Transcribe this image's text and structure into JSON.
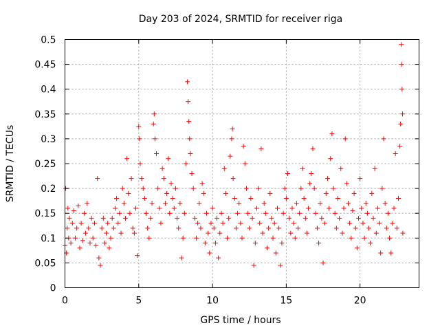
{
  "chart_data": {
    "type": "scatter",
    "title": "Day 203 of 2024, SRMTID for receiver riga",
    "xlabel": "GPS time / hours",
    "ylabel": "SRMTID / TECUs",
    "xlim": [
      0,
      24
    ],
    "ylim": [
      0,
      0.5
    ],
    "xticks": [
      0,
      5,
      10,
      15,
      20
    ],
    "yticks": [
      0,
      0.05,
      0.1,
      0.15,
      0.2,
      0.25,
      0.3,
      0.35,
      0.4,
      0.45,
      0.5
    ],
    "grid": true,
    "marker": "+",
    "color": "#ff0000",
    "series": [
      {
        "values": [
          [
            0.0,
            0.085
          ],
          [
            0.05,
            0.2
          ],
          [
            0.1,
            0.07
          ],
          [
            0.15,
            0.12
          ],
          [
            0.2,
            0.16
          ],
          [
            0.25,
            0.1
          ],
          [
            0.3,
            0.14
          ],
          [
            0.4,
            0.09
          ],
          [
            0.5,
            0.13
          ],
          [
            0.6,
            0.155
          ],
          [
            0.7,
            0.1
          ],
          [
            0.8,
            0.12
          ],
          [
            0.9,
            0.165
          ],
          [
            1.0,
            0.08
          ],
          [
            1.1,
            0.13
          ],
          [
            1.2,
            0.095
          ],
          [
            1.3,
            0.15
          ],
          [
            1.4,
            0.11
          ],
          [
            1.5,
            0.17
          ],
          [
            1.6,
            0.12
          ],
          [
            1.7,
            0.09
          ],
          [
            1.8,
            0.14
          ],
          [
            1.9,
            0.1
          ],
          [
            2.0,
            0.13
          ],
          [
            2.1,
            0.085
          ],
          [
            2.2,
            0.22
          ],
          [
            2.3,
            0.06
          ],
          [
            2.4,
            0.045
          ],
          [
            2.5,
            0.12
          ],
          [
            2.6,
            0.14
          ],
          [
            2.7,
            0.09
          ],
          [
            2.8,
            0.11
          ],
          [
            2.9,
            0.13
          ],
          [
            3.0,
            0.08
          ],
          [
            3.1,
            0.1
          ],
          [
            3.2,
            0.14
          ],
          [
            3.3,
            0.12
          ],
          [
            3.4,
            0.16
          ],
          [
            3.5,
            0.18
          ],
          [
            3.6,
            0.13
          ],
          [
            3.7,
            0.15
          ],
          [
            3.8,
            0.11
          ],
          [
            3.9,
            0.2
          ],
          [
            4.0,
            0.17
          ],
          [
            4.1,
            0.14
          ],
          [
            4.2,
            0.26
          ],
          [
            4.3,
            0.19
          ],
          [
            4.4,
            0.15
          ],
          [
            4.5,
            0.22
          ],
          [
            4.6,
            0.12
          ],
          [
            4.7,
            0.11
          ],
          [
            4.8,
            0.16
          ],
          [
            4.9,
            0.065
          ],
          [
            5.0,
            0.325
          ],
          [
            5.05,
            0.3
          ],
          [
            5.1,
            0.25
          ],
          [
            5.2,
            0.22
          ],
          [
            5.3,
            0.2
          ],
          [
            5.4,
            0.18
          ],
          [
            5.5,
            0.15
          ],
          [
            5.6,
            0.12
          ],
          [
            5.7,
            0.1
          ],
          [
            5.8,
            0.14
          ],
          [
            5.9,
            0.17
          ],
          [
            6.0,
            0.33
          ],
          [
            6.05,
            0.35
          ],
          [
            6.1,
            0.3
          ],
          [
            6.2,
            0.27
          ],
          [
            6.3,
            0.2
          ],
          [
            6.4,
            0.16
          ],
          [
            6.5,
            0.13
          ],
          [
            6.6,
            0.24
          ],
          [
            6.7,
            0.22
          ],
          [
            6.8,
            0.17
          ],
          [
            6.9,
            0.19
          ],
          [
            7.0,
            0.26
          ],
          [
            7.1,
            0.15
          ],
          [
            7.2,
            0.21
          ],
          [
            7.3,
            0.18
          ],
          [
            7.4,
            0.16
          ],
          [
            7.5,
            0.2
          ],
          [
            7.6,
            0.14
          ],
          [
            7.7,
            0.12
          ],
          [
            7.8,
            0.17
          ],
          [
            7.9,
            0.06
          ],
          [
            8.0,
            0.1
          ],
          [
            8.1,
            0.15
          ],
          [
            8.2,
            0.25
          ],
          [
            8.3,
            0.415
          ],
          [
            8.35,
            0.375
          ],
          [
            8.4,
            0.335
          ],
          [
            8.45,
            0.3
          ],
          [
            8.5,
            0.27
          ],
          [
            8.6,
            0.23
          ],
          [
            8.7,
            0.2
          ],
          [
            8.8,
            0.14
          ],
          [
            8.9,
            0.1
          ],
          [
            9.0,
            0.13
          ],
          [
            9.1,
            0.17
          ],
          [
            9.2,
            0.12
          ],
          [
            9.3,
            0.21
          ],
          [
            9.4,
            0.19
          ],
          [
            9.5,
            0.09
          ],
          [
            9.6,
            0.15
          ],
          [
            9.7,
            0.11
          ],
          [
            9.8,
            0.07
          ],
          [
            9.9,
            0.13
          ],
          [
            10.0,
            0.16
          ],
          [
            10.1,
            0.12
          ],
          [
            10.2,
            0.09
          ],
          [
            10.3,
            0.14
          ],
          [
            10.4,
            0.06
          ],
          [
            10.5,
            0.11
          ],
          [
            10.6,
            0.15
          ],
          [
            10.7,
            0.13
          ],
          [
            10.8,
            0.24
          ],
          [
            10.9,
            0.19
          ],
          [
            11.0,
            0.1
          ],
          [
            11.1,
            0.14
          ],
          [
            11.2,
            0.265
          ],
          [
            11.3,
            0.3
          ],
          [
            11.35,
            0.32
          ],
          [
            11.4,
            0.22
          ],
          [
            11.5,
            0.18
          ],
          [
            11.6,
            0.12
          ],
          [
            11.7,
            0.15
          ],
          [
            11.8,
            0.17
          ],
          [
            11.9,
            0.13
          ],
          [
            12.0,
            0.1
          ],
          [
            12.1,
            0.285
          ],
          [
            12.2,
            0.25
          ],
          [
            12.3,
            0.2
          ],
          [
            12.4,
            0.15
          ],
          [
            12.5,
            0.12
          ],
          [
            12.6,
            0.18
          ],
          [
            12.7,
            0.14
          ],
          [
            12.8,
            0.045
          ],
          [
            12.9,
            0.09
          ],
          [
            13.0,
            0.16
          ],
          [
            13.1,
            0.2
          ],
          [
            13.2,
            0.13
          ],
          [
            13.3,
            0.28
          ],
          [
            13.4,
            0.11
          ],
          [
            13.5,
            0.17
          ],
          [
            13.6,
            0.15
          ],
          [
            13.7,
            0.08
          ],
          [
            13.8,
            0.12
          ],
          [
            13.9,
            0.19
          ],
          [
            14.0,
            0.14
          ],
          [
            14.1,
            0.1
          ],
          [
            14.2,
            0.13
          ],
          [
            14.3,
            0.07
          ],
          [
            14.4,
            0.16
          ],
          [
            14.5,
            0.12
          ],
          [
            14.6,
            0.045
          ],
          [
            14.7,
            0.09
          ],
          [
            14.8,
            0.15
          ],
          [
            14.9,
            0.2
          ],
          [
            15.0,
            0.18
          ],
          [
            15.1,
            0.23
          ],
          [
            15.2,
            0.14
          ],
          [
            15.3,
            0.11
          ],
          [
            15.4,
            0.16
          ],
          [
            15.5,
            0.13
          ],
          [
            15.6,
            0.1
          ],
          [
            15.7,
            0.17
          ],
          [
            15.8,
            0.12
          ],
          [
            15.9,
            0.15
          ],
          [
            16.0,
            0.2
          ],
          [
            16.1,
            0.24
          ],
          [
            16.2,
            0.18
          ],
          [
            16.3,
            0.14
          ],
          [
            16.4,
            0.11
          ],
          [
            16.5,
            0.16
          ],
          [
            16.6,
            0.21
          ],
          [
            16.7,
            0.23
          ],
          [
            16.8,
            0.28
          ],
          [
            16.9,
            0.2
          ],
          [
            17.0,
            0.15
          ],
          [
            17.1,
            0.12
          ],
          [
            17.2,
            0.09
          ],
          [
            17.3,
            0.17
          ],
          [
            17.4,
            0.14
          ],
          [
            17.5,
            0.05
          ],
          [
            17.6,
            0.13
          ],
          [
            17.7,
            0.19
          ],
          [
            17.8,
            0.22
          ],
          [
            17.9,
            0.16
          ],
          [
            18.0,
            0.26
          ],
          [
            18.1,
            0.31
          ],
          [
            18.2,
            0.2
          ],
          [
            18.3,
            0.15
          ],
          [
            18.4,
            0.12
          ],
          [
            18.5,
            0.18
          ],
          [
            18.6,
            0.14
          ],
          [
            18.7,
            0.24
          ],
          [
            18.8,
            0.11
          ],
          [
            18.9,
            0.16
          ],
          [
            19.0,
            0.3
          ],
          [
            19.1,
            0.21
          ],
          [
            19.2,
            0.17
          ],
          [
            19.3,
            0.13
          ],
          [
            19.4,
            0.1
          ],
          [
            19.5,
            0.155
          ],
          [
            19.6,
            0.19
          ],
          [
            19.7,
            0.12
          ],
          [
            19.8,
            0.08
          ],
          [
            19.9,
            0.14
          ],
          [
            20.0,
            0.22
          ],
          [
            20.1,
            0.16
          ],
          [
            20.2,
            0.13
          ],
          [
            20.3,
            0.1
          ],
          [
            20.4,
            0.17
          ],
          [
            20.5,
            0.15
          ],
          [
            20.6,
            0.12
          ],
          [
            20.7,
            0.09
          ],
          [
            20.8,
            0.19
          ],
          [
            20.9,
            0.14
          ],
          [
            21.0,
            0.24
          ],
          [
            21.1,
            0.11
          ],
          [
            21.2,
            0.16
          ],
          [
            21.3,
            0.13
          ],
          [
            21.4,
            0.07
          ],
          [
            21.5,
            0.2
          ],
          [
            21.6,
            0.3
          ],
          [
            21.7,
            0.17
          ],
          [
            21.8,
            0.12
          ],
          [
            21.9,
            0.15
          ],
          [
            22.0,
            0.1
          ],
          [
            22.1,
            0.07
          ],
          [
            22.2,
            0.13
          ],
          [
            22.3,
            0.16
          ],
          [
            22.4,
            0.27
          ],
          [
            22.5,
            0.12
          ],
          [
            22.6,
            0.18
          ],
          [
            22.7,
            0.285
          ],
          [
            22.75,
            0.33
          ],
          [
            22.8,
            0.49
          ],
          [
            22.82,
            0.45
          ],
          [
            22.85,
            0.4
          ],
          [
            22.88,
            0.35
          ],
          [
            22.9,
            0.11
          ]
        ]
      }
    ]
  }
}
